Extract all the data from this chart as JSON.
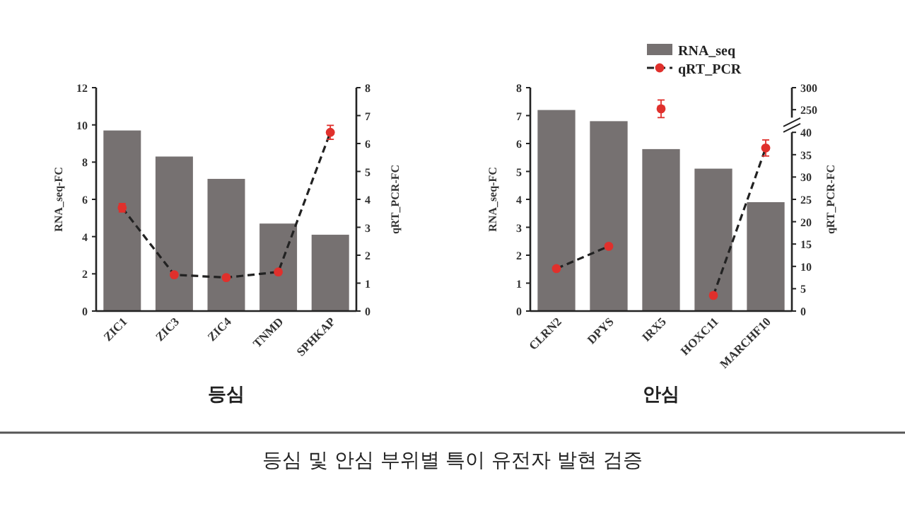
{
  "chart_data": [
    {
      "type": "bar",
      "categories": [
        "ZIC1",
        "ZIC3",
        "ZIC4",
        "TNMD",
        "SPHKAP"
      ],
      "xlabel": "등심",
      "ylabel": "RNA_seq-FC",
      "y2label": "qRT_PCR-FC",
      "ylim": [
        0,
        12
      ],
      "yticks": [
        0,
        2,
        4,
        6,
        8,
        10,
        12
      ],
      "y2lim": [
        0,
        8
      ],
      "y2ticks": [
        0,
        1,
        2,
        3,
        4,
        5,
        6,
        7,
        8
      ],
      "grid": false,
      "marker": "circle",
      "line_style": "dashed",
      "series": [
        {
          "color": "#767171",
          "values": [
            9.7,
            8.3,
            7.1,
            4.7,
            4.1
          ]
        },
        {
          "type": "line",
          "axis": "y2",
          "color": "#e0302c",
          "values": [
            3.7,
            1.3,
            1.2,
            1.4,
            6.4
          ],
          "errors": [
            0.15,
            null,
            null,
            null,
            0.25
          ]
        }
      ]
    },
    {
      "type": "bar",
      "categories": [
        "CLRN2",
        "DPYS",
        "IRX5",
        "HOXC11",
        "MARCHF10"
      ],
      "xlabel": "안심",
      "ylabel": "RNA_seq-FC",
      "y2label": "qRT_PCR-FC",
      "ylim": [
        0,
        8
      ],
      "yticks": [
        0,
        1,
        2,
        3,
        4,
        5,
        6,
        7,
        8
      ],
      "y2lim": [
        0,
        40
      ],
      "y2ticks": [
        0,
        5,
        10,
        15,
        20,
        25,
        30,
        35,
        40
      ],
      "y3lim": [
        232,
        300
      ],
      "y3ticks": [
        250,
        300
      ],
      "grid": false,
      "legend": "top",
      "marker": "circle",
      "line_style": "dashed",
      "annotations": [
        "등심 및 안심 부위별 특이 유전자 발현 검증"
      ],
      "series": [
        {
          "name": "RNA_seq",
          "color": "#767171",
          "values": [
            7.2,
            6.8,
            5.8,
            5.1,
            3.9
          ]
        },
        {
          "type": "line",
          "name": "qRT_PCR",
          "axis": "y2",
          "color": "#e0302c",
          "values": [
            9.5,
            14.5,
            null,
            3.5,
            36.5
          ],
          "errors": [
            null,
            null,
            null,
            null,
            1.8
          ]
        },
        {
          "type": "line",
          "axis": "y3",
          "color": "#e0302c",
          "values": [
            null,
            null,
            252,
            null,
            null
          ],
          "errors": [
            null,
            null,
            20,
            null,
            null
          ]
        }
      ]
    }
  ]
}
